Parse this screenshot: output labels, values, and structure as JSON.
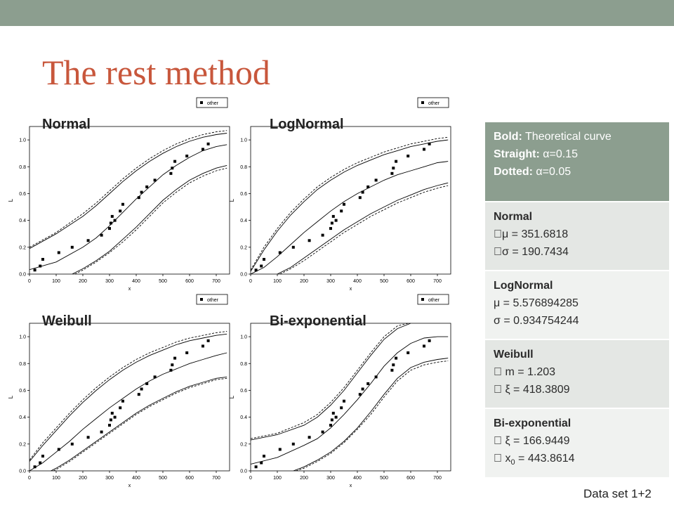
{
  "slide": {
    "title": "The rest method",
    "footer": "Data set 1+2",
    "colors": {
      "topbar": "#8c9e8f",
      "title": "#c8573c"
    }
  },
  "chart_data": [
    {
      "type": "scatter",
      "label": "Normal",
      "legend": "other",
      "legend_placement": "top-right",
      "xlabel": "x",
      "ylabel": "L",
      "xlim": [
        0,
        750
      ],
      "ylim": [
        0,
        1.1
      ],
      "xticks": [
        "0",
        "100",
        "200",
        "300",
        "400",
        "500",
        "600",
        "700"
      ],
      "yticks": [
        "0.0",
        "0.2",
        "0.4",
        "0.6",
        "0.8",
        "1.0"
      ],
      "points": {
        "x": [
          20,
          40,
          50,
          110,
          160,
          220,
          270,
          300,
          305,
          310,
          320,
          340,
          350,
          410,
          420,
          440,
          470,
          530,
          535,
          545,
          590,
          650,
          670
        ],
        "y": [
          0.03,
          0.06,
          0.11,
          0.16,
          0.2,
          0.25,
          0.29,
          0.34,
          0.38,
          0.43,
          0.4,
          0.47,
          0.52,
          0.57,
          0.61,
          0.65,
          0.7,
          0.75,
          0.79,
          0.84,
          0.88,
          0.93,
          0.97
        ]
      },
      "curves": [
        {
          "name": "theoretical",
          "style": "solid",
          "x": [
            0,
            100,
            200,
            250,
            300,
            350,
            400,
            450,
            500,
            550,
            600,
            650,
            700,
            740
          ],
          "y": [
            0.033,
            0.09,
            0.2,
            0.27,
            0.36,
            0.46,
            0.56,
            0.65,
            0.74,
            0.81,
            0.87,
            0.92,
            0.95,
            0.965
          ]
        },
        {
          "name": "upper α=0.15",
          "style": "solid",
          "x": [
            0,
            100,
            200,
            250,
            300,
            350,
            400,
            450,
            500,
            550,
            600,
            650,
            700,
            740
          ],
          "y": [
            0.19,
            0.3,
            0.43,
            0.51,
            0.6,
            0.69,
            0.77,
            0.84,
            0.9,
            0.95,
            0.99,
            1.02,
            1.04,
            1.05
          ]
        },
        {
          "name": "lower α=0.15",
          "style": "solid",
          "x": [
            160,
            200,
            250,
            300,
            350,
            400,
            450,
            500,
            550,
            600,
            650,
            700,
            740
          ],
          "y": [
            0.0,
            0.04,
            0.1,
            0.17,
            0.26,
            0.35,
            0.45,
            0.55,
            0.63,
            0.7,
            0.75,
            0.79,
            0.81
          ]
        },
        {
          "name": "upper α=0.05",
          "style": "dashed",
          "x": [
            0,
            100,
            200,
            250,
            300,
            350,
            400,
            450,
            500,
            550,
            600,
            650,
            700,
            740
          ],
          "y": [
            0.2,
            0.31,
            0.45,
            0.53,
            0.62,
            0.71,
            0.79,
            0.86,
            0.92,
            0.97,
            1.01,
            1.04,
            1.06,
            1.07
          ]
        },
        {
          "name": "lower α=0.05",
          "style": "dashed",
          "x": [
            170,
            200,
            250,
            300,
            350,
            400,
            450,
            500,
            550,
            600,
            650,
            700,
            740
          ],
          "y": [
            0.0,
            0.03,
            0.09,
            0.16,
            0.24,
            0.33,
            0.43,
            0.53,
            0.61,
            0.68,
            0.73,
            0.77,
            0.79
          ]
        }
      ]
    },
    {
      "type": "scatter",
      "label": "LogNormal",
      "legend": "other",
      "legend_placement": "top-right",
      "xlabel": "x",
      "ylabel": "L",
      "xlim": [
        0,
        750
      ],
      "ylim": [
        0,
        1.1
      ],
      "xticks": [
        "0",
        "100",
        "200",
        "300",
        "400",
        "500",
        "600",
        "700"
      ],
      "yticks": [
        "0.0",
        "0.2",
        "0.4",
        "0.6",
        "0.8",
        "1.0"
      ],
      "points": {
        "x": [
          20,
          40,
          50,
          110,
          160,
          220,
          270,
          300,
          305,
          310,
          320,
          340,
          350,
          410,
          420,
          440,
          470,
          530,
          535,
          545,
          590,
          650,
          670
        ],
        "y": [
          0.03,
          0.06,
          0.11,
          0.16,
          0.2,
          0.25,
          0.29,
          0.34,
          0.38,
          0.43,
          0.4,
          0.47,
          0.52,
          0.57,
          0.61,
          0.65,
          0.7,
          0.75,
          0.79,
          0.84,
          0.88,
          0.93,
          0.97
        ]
      },
      "curves": [
        {
          "name": "theoretical",
          "style": "solid",
          "x": [
            0,
            50,
            100,
            150,
            200,
            250,
            300,
            350,
            400,
            450,
            500,
            550,
            600,
            650,
            700,
            740
          ],
          "y": [
            0.0,
            0.05,
            0.13,
            0.22,
            0.31,
            0.39,
            0.47,
            0.54,
            0.6,
            0.65,
            0.7,
            0.74,
            0.77,
            0.8,
            0.83,
            0.84
          ]
        },
        {
          "name": "upper α=0.15",
          "style": "solid",
          "x": [
            0,
            50,
            100,
            150,
            200,
            250,
            300,
            350,
            400,
            450,
            500,
            550,
            600,
            650,
            700,
            740
          ],
          "y": [
            0.02,
            0.18,
            0.32,
            0.44,
            0.54,
            0.63,
            0.7,
            0.76,
            0.81,
            0.85,
            0.89,
            0.92,
            0.95,
            0.97,
            0.99,
            1.0
          ]
        },
        {
          "name": "lower α=0.15",
          "style": "solid",
          "x": [
            100,
            150,
            200,
            250,
            300,
            350,
            400,
            450,
            500,
            550,
            600,
            650,
            700,
            740
          ],
          "y": [
            0.0,
            0.05,
            0.12,
            0.19,
            0.26,
            0.33,
            0.39,
            0.45,
            0.5,
            0.55,
            0.59,
            0.63,
            0.66,
            0.68
          ]
        },
        {
          "name": "upper α=0.05",
          "style": "dashed",
          "x": [
            0,
            50,
            100,
            150,
            200,
            250,
            300,
            350,
            400,
            450,
            500,
            550,
            600,
            650,
            700,
            740
          ],
          "y": [
            0.03,
            0.2,
            0.34,
            0.46,
            0.56,
            0.65,
            0.72,
            0.78,
            0.83,
            0.87,
            0.91,
            0.94,
            0.97,
            0.99,
            1.01,
            1.02
          ]
        },
        {
          "name": "lower α=0.05",
          "style": "dashed",
          "x": [
            110,
            150,
            200,
            250,
            300,
            350,
            400,
            450,
            500,
            550,
            600,
            650,
            700,
            740
          ],
          "y": [
            0.0,
            0.04,
            0.1,
            0.17,
            0.24,
            0.31,
            0.37,
            0.43,
            0.48,
            0.53,
            0.57,
            0.61,
            0.64,
            0.66
          ]
        }
      ]
    },
    {
      "type": "scatter",
      "label": "Weibull",
      "legend": "other",
      "legend_placement": "top-right",
      "xlabel": "x",
      "ylabel": "L",
      "xlim": [
        0,
        750
      ],
      "ylim": [
        0,
        1.1
      ],
      "xticks": [
        "0",
        "100",
        "200",
        "300",
        "400",
        "500",
        "600",
        "700"
      ],
      "yticks": [
        "0.0",
        "0.2",
        "0.4",
        "0.6",
        "0.8",
        "1.0"
      ],
      "points": {
        "x": [
          20,
          40,
          50,
          110,
          160,
          220,
          270,
          300,
          305,
          310,
          320,
          340,
          350,
          410,
          420,
          440,
          470,
          530,
          535,
          545,
          590,
          650,
          670
        ],
        "y": [
          0.03,
          0.06,
          0.11,
          0.16,
          0.2,
          0.25,
          0.29,
          0.34,
          0.38,
          0.43,
          0.4,
          0.47,
          0.52,
          0.57,
          0.61,
          0.65,
          0.7,
          0.75,
          0.79,
          0.84,
          0.88,
          0.93,
          0.97
        ]
      },
      "curves": [
        {
          "name": "theoretical",
          "style": "solid",
          "x": [
            0,
            50,
            100,
            150,
            200,
            250,
            300,
            350,
            400,
            450,
            500,
            550,
            600,
            650,
            700,
            740
          ],
          "y": [
            0.0,
            0.06,
            0.14,
            0.22,
            0.31,
            0.39,
            0.47,
            0.54,
            0.61,
            0.67,
            0.72,
            0.76,
            0.8,
            0.83,
            0.86,
            0.88
          ]
        },
        {
          "name": "upper α=0.15",
          "style": "solid",
          "x": [
            0,
            50,
            100,
            150,
            200,
            250,
            300,
            350,
            400,
            450,
            500,
            550,
            600,
            650,
            700,
            740
          ],
          "y": [
            0.07,
            0.19,
            0.3,
            0.41,
            0.51,
            0.6,
            0.68,
            0.75,
            0.81,
            0.86,
            0.9,
            0.94,
            0.97,
            0.99,
            1.01,
            1.02
          ]
        },
        {
          "name": "lower α=0.15",
          "style": "solid",
          "x": [
            80,
            100,
            150,
            200,
            250,
            300,
            350,
            400,
            450,
            500,
            550,
            600,
            650,
            700,
            740
          ],
          "y": [
            0.0,
            0.02,
            0.08,
            0.15,
            0.22,
            0.29,
            0.36,
            0.43,
            0.49,
            0.54,
            0.59,
            0.63,
            0.66,
            0.69,
            0.7
          ]
        },
        {
          "name": "upper α=0.05",
          "style": "dashed",
          "x": [
            0,
            50,
            100,
            150,
            200,
            250,
            300,
            350,
            400,
            450,
            500,
            550,
            600,
            650,
            700,
            740
          ],
          "y": [
            0.08,
            0.21,
            0.32,
            0.43,
            0.53,
            0.62,
            0.7,
            0.77,
            0.83,
            0.88,
            0.92,
            0.96,
            0.99,
            1.01,
            1.03,
            1.04
          ]
        },
        {
          "name": "lower α=0.05",
          "style": "dashed",
          "x": [
            90,
            100,
            150,
            200,
            250,
            300,
            350,
            400,
            450,
            500,
            550,
            600,
            650,
            700,
            740
          ],
          "y": [
            0.0,
            0.01,
            0.07,
            0.14,
            0.21,
            0.28,
            0.35,
            0.42,
            0.48,
            0.53,
            0.58,
            0.62,
            0.65,
            0.68,
            0.69
          ]
        }
      ]
    },
    {
      "type": "scatter",
      "label": "Bi-exponential",
      "legend": "other",
      "legend_placement": "top-right",
      "xlabel": "x",
      "ylabel": "L",
      "xlim": [
        0,
        750
      ],
      "ylim": [
        0,
        1.1
      ],
      "xticks": [
        "0",
        "100",
        "200",
        "300",
        "400",
        "500",
        "600",
        "700"
      ],
      "yticks": [
        "0.0",
        "0.2",
        "0.4",
        "0.6",
        "0.8",
        "1.0"
      ],
      "points": {
        "x": [
          20,
          40,
          50,
          110,
          160,
          220,
          270,
          300,
          305,
          310,
          320,
          340,
          350,
          410,
          420,
          440,
          470,
          530,
          535,
          545,
          590,
          650,
          670
        ],
        "y": [
          0.03,
          0.06,
          0.11,
          0.16,
          0.2,
          0.25,
          0.29,
          0.34,
          0.38,
          0.43,
          0.4,
          0.47,
          0.52,
          0.57,
          0.61,
          0.65,
          0.7,
          0.75,
          0.79,
          0.84,
          0.88,
          0.93,
          0.97
        ]
      },
      "curves": [
        {
          "name": "theoretical",
          "style": "solid",
          "x": [
            0,
            100,
            200,
            250,
            300,
            350,
            400,
            450,
            500,
            550,
            600,
            650,
            700,
            740
          ],
          "y": [
            0.05,
            0.1,
            0.19,
            0.24,
            0.32,
            0.42,
            0.53,
            0.65,
            0.78,
            0.88,
            0.95,
            0.99,
            1.0,
            1.0
          ]
        },
        {
          "name": "upper α=0.15",
          "style": "solid",
          "x": [
            0,
            100,
            200,
            250,
            300,
            350,
            400,
            450,
            500,
            550,
            600
          ],
          "y": [
            0.23,
            0.27,
            0.34,
            0.4,
            0.49,
            0.6,
            0.73,
            0.86,
            0.98,
            1.06,
            1.1
          ]
        },
        {
          "name": "lower α=0.15",
          "style": "solid",
          "x": [
            160,
            200,
            250,
            300,
            350,
            400,
            450,
            500,
            550,
            600,
            650,
            700,
            740
          ],
          "y": [
            0.0,
            0.03,
            0.08,
            0.14,
            0.22,
            0.32,
            0.44,
            0.57,
            0.69,
            0.77,
            0.81,
            0.83,
            0.84
          ]
        },
        {
          "name": "upper α=0.05",
          "style": "dashed",
          "x": [
            0,
            100,
            200,
            250,
            300,
            350,
            400,
            450,
            500,
            550,
            590
          ],
          "y": [
            0.24,
            0.28,
            0.36,
            0.42,
            0.51,
            0.62,
            0.75,
            0.88,
            1.0,
            1.08,
            1.1
          ]
        },
        {
          "name": "lower α=0.05",
          "style": "dashed",
          "x": [
            170,
            200,
            250,
            300,
            350,
            400,
            450,
            500,
            550,
            600,
            650,
            700,
            740
          ],
          "y": [
            0.0,
            0.02,
            0.07,
            0.13,
            0.21,
            0.31,
            0.42,
            0.55,
            0.67,
            0.75,
            0.79,
            0.81,
            0.82
          ]
        }
      ]
    }
  ],
  "info_box": {
    "header": {
      "bold_label": "Bold:",
      "bold_text": " Theoretical curve",
      "straight_label": "Straight:",
      "straight_text": " α=0.15",
      "dotted_label": "Dotted:",
      "dotted_text": " α=0.05"
    },
    "rows": [
      {
        "name": "Normal",
        "lines": [
          "\u0000μ = 351.6818",
          "\u0000σ = 190.7434"
        ]
      },
      {
        "name": "LogNormal",
        "lines": [
          "μ = 5.576894285",
          "σ = 0.934754244"
        ]
      },
      {
        "name": "Weibull",
        "lines": [
          "\u0000 m = 1.203",
          "\u0000 ξ = 418.3809"
        ]
      },
      {
        "name": "Bi-exponential",
        "lines": [
          "\u0000 ξ = 166.9449",
          "\u0000 x",
          "0",
          " = 443.8614"
        ]
      }
    ],
    "colors": {
      "header_bg": "#8c9e8f",
      "row_a": "#e4e7e4",
      "row_b": "#f0f2f0"
    }
  }
}
